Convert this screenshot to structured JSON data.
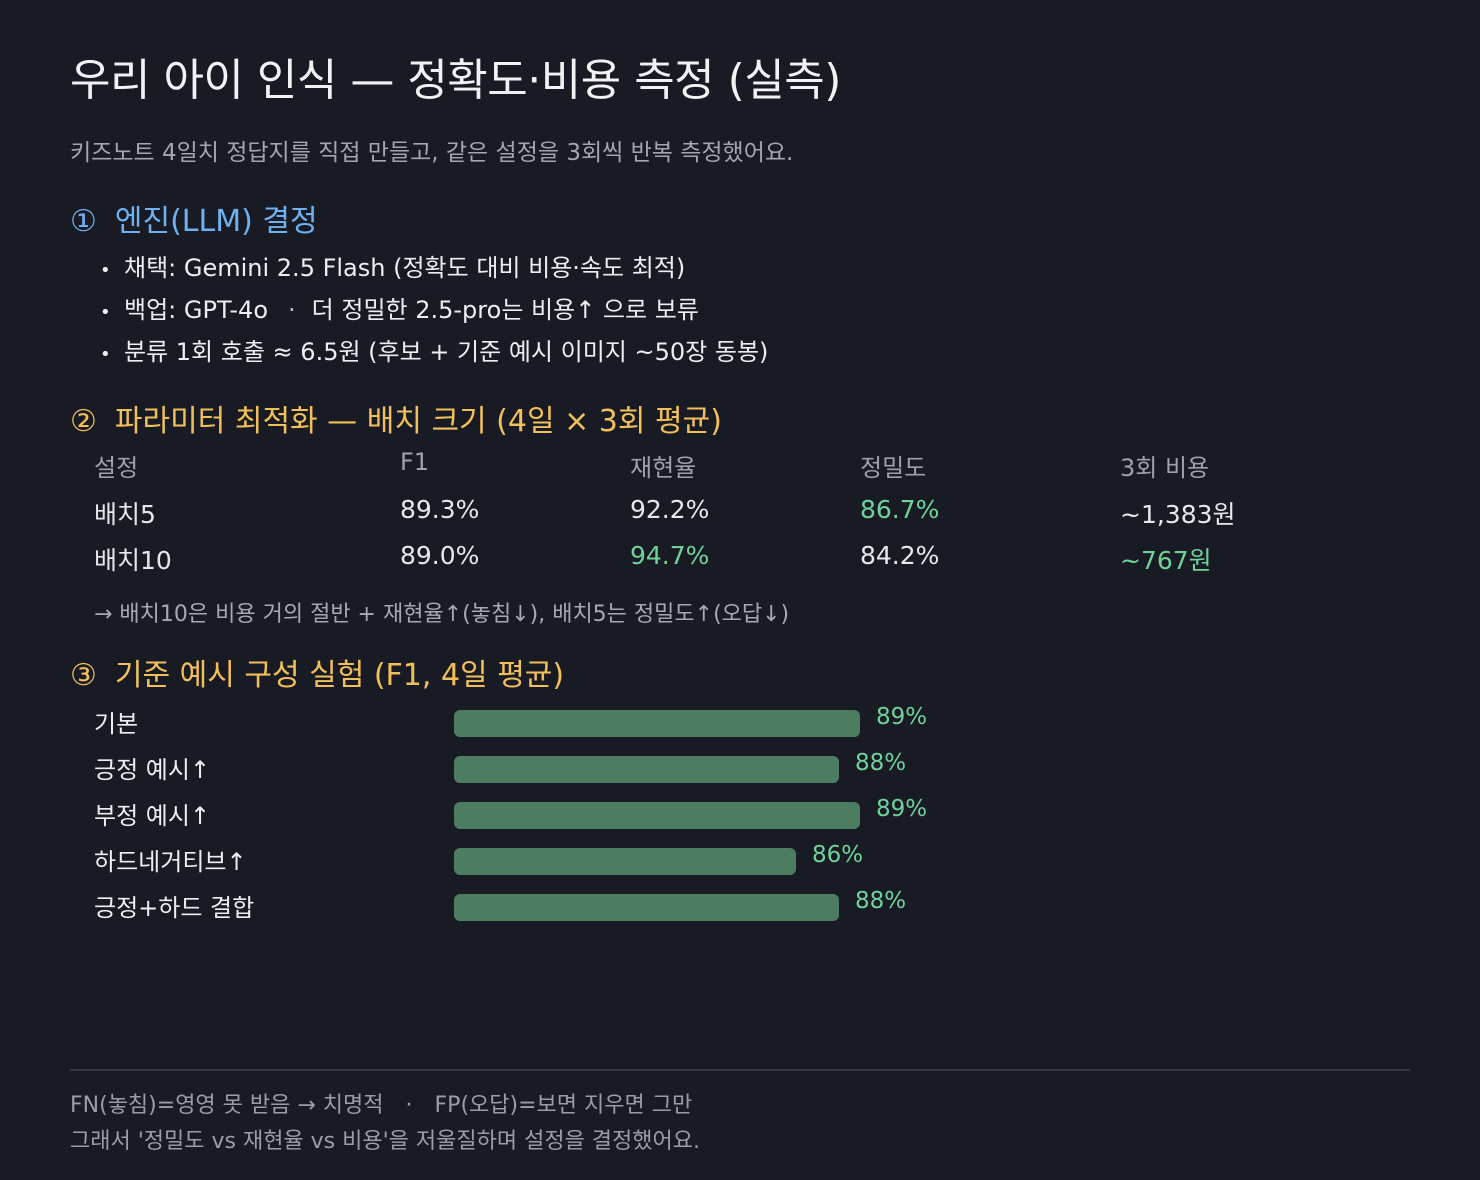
{
  "title": "우리 아이 인식 — 정확도·비용 측정 (실측)",
  "subtitle": "키즈노트 4일치 정답지를 직접 만들고, 같은 설정을 3회씩 반복 측정했어요.",
  "section1": {
    "num": "①",
    "heading": "엔진(LLM) 결정",
    "bullets": [
      "채택: Gemini 2.5 Flash  (정확도 대비 비용·속도 최적)",
      "백업: GPT-4o",
      "더 정밀한 2.5-pro는 비용↑ 으로 보류",
      "분류 1회 호출 ≈ 6.5원  (후보 + 기준 예시 이미지 ~50장 동봉)"
    ],
    "bullet_mark": "•",
    "separator": "·"
  },
  "section2": {
    "num": "②",
    "heading": "파라미터 최적화 — 배치 크기 (4일 × 3회 평균)",
    "note": "→ 배치10은 비용 거의 절반 + 재현율↑(놓침↓), 배치5는 정밀도↑(오답↓)"
  },
  "section3": {
    "num": "③",
    "heading": "기준 예시 구성 실험 (F1, 4일 평균)"
  },
  "chart_data": [
    {
      "type": "table",
      "title": "파라미터 최적화 — 배치 크기 (4일 × 3회 평균)",
      "columns": [
        "설정",
        "F1",
        "재현율",
        "정밀도",
        "3회 비용"
      ],
      "rows": [
        [
          "배치5",
          "89.3%",
          "92.2%",
          "86.7%",
          "~1,383원"
        ],
        [
          "배치10",
          "89.0%",
          "94.7%",
          "84.2%",
          "~767원"
        ]
      ],
      "highlight_cells": [
        [
          0,
          3
        ],
        [
          1,
          2
        ],
        [
          1,
          4
        ]
      ]
    },
    {
      "type": "bar",
      "orientation": "horizontal",
      "title": "기준 예시 구성 실험 (F1, 4일 평균)",
      "categories": [
        "기본",
        "긍정 예시↑",
        "부정 예시↑",
        "하드네거티브↑",
        "긍정+하드 결합"
      ],
      "values": [
        89,
        88,
        89,
        86,
        88
      ],
      "value_labels": [
        "89%",
        "88%",
        "89%",
        "86%",
        "88%"
      ],
      "unit": "%",
      "bar_color": "#4c7d61",
      "label_color": "#6fd29a"
    }
  ],
  "colors": {
    "background": "#191b24",
    "section1": "#6fb2f2",
    "section2_3": "#f2c05a",
    "good": "#6fd29a",
    "bar": "#4c7d61"
  },
  "footer": {
    "line1_a": "FN(놓침)=영영 못 받음 → 치명적",
    "line1_sep": "·",
    "line1_b": "FP(오답)=보면 지우면 그만",
    "line2": "그래서 '정밀도 vs 재현율 vs 비용'을 저울질하며 설정을 결정했어요."
  }
}
